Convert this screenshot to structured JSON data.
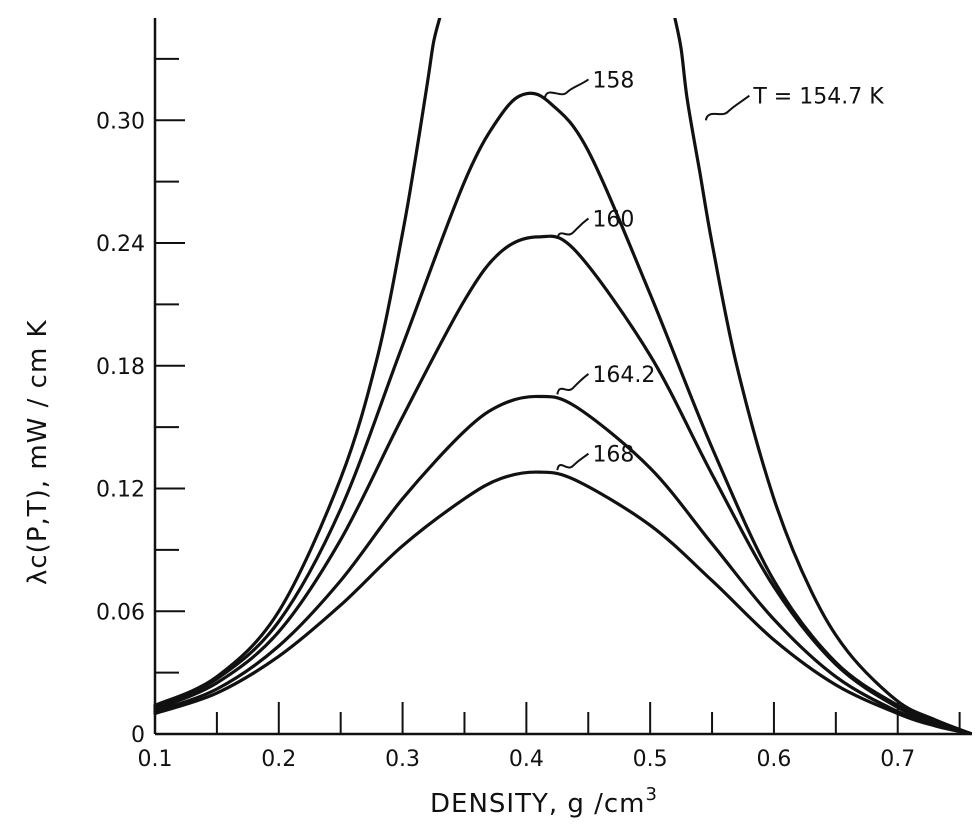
{
  "chart_data": {
    "type": "line",
    "title": "",
    "xlabel": "DENSITY, g /cm",
    "xlabel_superscript": "3",
    "ylabel": "λc(P,T), mW / cm K",
    "xlim": [
      0.1,
      0.76
    ],
    "ylim": [
      0,
      0.35
    ],
    "x_ticks": [
      "0.1",
      "0.2",
      "0.3",
      "0.4",
      "0.5",
      "0.6",
      "0.7"
    ],
    "y_ticks": [
      "0",
      "0.06",
      "0.12",
      "0.18",
      "0.24",
      "0.30"
    ],
    "grid": false,
    "series": [
      {
        "name": "T = 154.7 K",
        "label": "T = 154.7 K",
        "x": [
          0.1,
          0.15,
          0.2,
          0.25,
          0.28,
          0.3,
          0.31,
          0.32,
          0.325,
          0.33
        ],
        "y": [
          0.014,
          0.028,
          0.06,
          0.125,
          0.185,
          0.245,
          0.28,
          0.318,
          0.338,
          0.35
        ],
        "x2": [
          0.52,
          0.525,
          0.53,
          0.54,
          0.55,
          0.57,
          0.6,
          0.63,
          0.66,
          0.7,
          0.73,
          0.76
        ],
        "y2": [
          0.35,
          0.335,
          0.31,
          0.275,
          0.24,
          0.18,
          0.115,
          0.07,
          0.04,
          0.016,
          0.007,
          0.0
        ]
      },
      {
        "name": "158",
        "label": "158",
        "x": [
          0.1,
          0.15,
          0.2,
          0.25,
          0.3,
          0.35,
          0.38,
          0.4,
          0.42,
          0.45,
          0.5,
          0.55,
          0.6,
          0.65,
          0.7,
          0.73,
          0.76
        ],
        "y": [
          0.013,
          0.027,
          0.055,
          0.11,
          0.19,
          0.27,
          0.303,
          0.313,
          0.308,
          0.285,
          0.215,
          0.14,
          0.075,
          0.035,
          0.014,
          0.006,
          0.0
        ]
      },
      {
        "name": "160",
        "label": "160",
        "x": [
          0.1,
          0.15,
          0.2,
          0.25,
          0.3,
          0.35,
          0.38,
          0.41,
          0.44,
          0.5,
          0.55,
          0.6,
          0.65,
          0.7,
          0.73,
          0.76
        ],
        "y": [
          0.012,
          0.025,
          0.05,
          0.095,
          0.155,
          0.212,
          0.236,
          0.243,
          0.236,
          0.185,
          0.127,
          0.072,
          0.034,
          0.013,
          0.006,
          0.0
        ]
      },
      {
        "name": "164.2",
        "label": "164.2",
        "x": [
          0.1,
          0.15,
          0.2,
          0.25,
          0.3,
          0.35,
          0.38,
          0.41,
          0.44,
          0.5,
          0.55,
          0.6,
          0.65,
          0.7,
          0.73,
          0.76
        ],
        "y": [
          0.011,
          0.022,
          0.043,
          0.075,
          0.115,
          0.148,
          0.161,
          0.165,
          0.16,
          0.13,
          0.093,
          0.056,
          0.028,
          0.011,
          0.005,
          0.0
        ]
      },
      {
        "name": "168",
        "label": "168",
        "x": [
          0.1,
          0.15,
          0.2,
          0.25,
          0.3,
          0.35,
          0.38,
          0.41,
          0.44,
          0.5,
          0.55,
          0.6,
          0.65,
          0.7,
          0.73,
          0.76
        ],
        "y": [
          0.01,
          0.02,
          0.038,
          0.063,
          0.092,
          0.115,
          0.125,
          0.128,
          0.124,
          0.102,
          0.075,
          0.046,
          0.024,
          0.01,
          0.004,
          0.0
        ]
      }
    ]
  }
}
